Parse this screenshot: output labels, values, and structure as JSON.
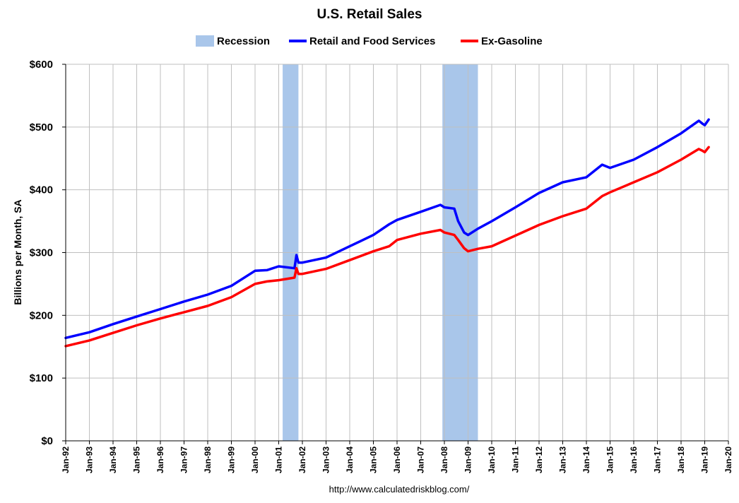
{
  "chart_data": {
    "type": "line",
    "title": "U.S. Retail Sales",
    "ylabel": "Billions per Month, SA",
    "xlabel": "",
    "ylim": [
      0,
      600
    ],
    "xlim": [
      "1992-01",
      "2020-01"
    ],
    "y_ticks": [
      "$0",
      "$100",
      "$200",
      "$300",
      "$400",
      "$500",
      "$600"
    ],
    "y_tick_values": [
      0,
      100,
      200,
      300,
      400,
      500,
      600
    ],
    "x_ticks": [
      "Jan-92",
      "Jan-93",
      "Jan-94",
      "Jan-95",
      "Jan-96",
      "Jan-97",
      "Jan-98",
      "Jan-99",
      "Jan-00",
      "Jan-01",
      "Jan-02",
      "Jan-03",
      "Jan-04",
      "Jan-05",
      "Jan-06",
      "Jan-07",
      "Jan-08",
      "Jan-09",
      "Jan-10",
      "Jan-11",
      "Jan-12",
      "Jan-13",
      "Jan-14",
      "Jan-15",
      "Jan-16",
      "Jan-17",
      "Jan-18",
      "Jan-19",
      "Jan-20"
    ],
    "grid": true,
    "legend_position": "top",
    "recessions": [
      {
        "start": "2001-03",
        "end": "2001-11"
      },
      {
        "start": "2007-12",
        "end": "2009-06"
      }
    ],
    "legend": [
      {
        "name": "Recession",
        "kind": "band",
        "color": "#a9c6ea"
      },
      {
        "name": "Retail and Food Services",
        "kind": "line",
        "color": "#0000ff"
      },
      {
        "name": "Ex-Gasoline",
        "kind": "line",
        "color": "#ff0000"
      }
    ],
    "series": [
      {
        "name": "Retail and Food Services",
        "color": "#0000ff",
        "x": [
          "1992-01",
          "1993-01",
          "1994-01",
          "1995-01",
          "1996-01",
          "1997-01",
          "1998-01",
          "1999-01",
          "2000-01",
          "2000-07",
          "2001-01",
          "2001-09",
          "2001-10",
          "2001-11",
          "2002-01",
          "2003-01",
          "2004-01",
          "2005-01",
          "2005-09",
          "2006-01",
          "2007-01",
          "2007-11",
          "2008-01",
          "2008-06",
          "2008-08",
          "2008-11",
          "2009-01",
          "2009-06",
          "2010-01",
          "2011-01",
          "2012-01",
          "2013-01",
          "2014-01",
          "2014-09",
          "2015-01",
          "2016-01",
          "2017-01",
          "2018-01",
          "2018-10",
          "2018-12",
          "2019-01",
          "2019-03"
        ],
        "values": [
          164,
          173,
          186,
          198,
          210,
          222,
          233,
          247,
          271,
          272,
          278,
          275,
          296,
          284,
          284,
          292,
          310,
          328,
          345,
          352,
          365,
          376,
          372,
          370,
          350,
          332,
          328,
          338,
          350,
          372,
          395,
          412,
          420,
          440,
          435,
          448,
          468,
          490,
          510,
          505,
          503,
          512
        ]
      },
      {
        "name": "Ex-Gasoline",
        "color": "#ff0000",
        "x": [
          "1992-01",
          "1993-01",
          "1994-01",
          "1995-01",
          "1996-01",
          "1997-01",
          "1998-01",
          "1999-01",
          "2000-01",
          "2000-07",
          "2001-01",
          "2001-09",
          "2001-10",
          "2001-11",
          "2002-01",
          "2003-01",
          "2004-01",
          "2005-01",
          "2005-09",
          "2006-01",
          "2007-01",
          "2007-11",
          "2008-01",
          "2008-06",
          "2008-08",
          "2008-11",
          "2009-01",
          "2009-06",
          "2010-01",
          "2011-01",
          "2012-01",
          "2013-01",
          "2014-01",
          "2014-09",
          "2015-01",
          "2016-01",
          "2017-01",
          "2018-01",
          "2018-10",
          "2018-12",
          "2019-01",
          "2019-03"
        ],
        "values": [
          151,
          160,
          172,
          184,
          195,
          205,
          215,
          229,
          250,
          254,
          256,
          260,
          275,
          266,
          266,
          274,
          288,
          302,
          310,
          320,
          330,
          336,
          332,
          328,
          320,
          307,
          302,
          306,
          310,
          327,
          344,
          358,
          370,
          390,
          396,
          412,
          428,
          448,
          465,
          462,
          460,
          468
        ]
      }
    ],
    "source": "http://www.calculatedriskblog.com/"
  }
}
